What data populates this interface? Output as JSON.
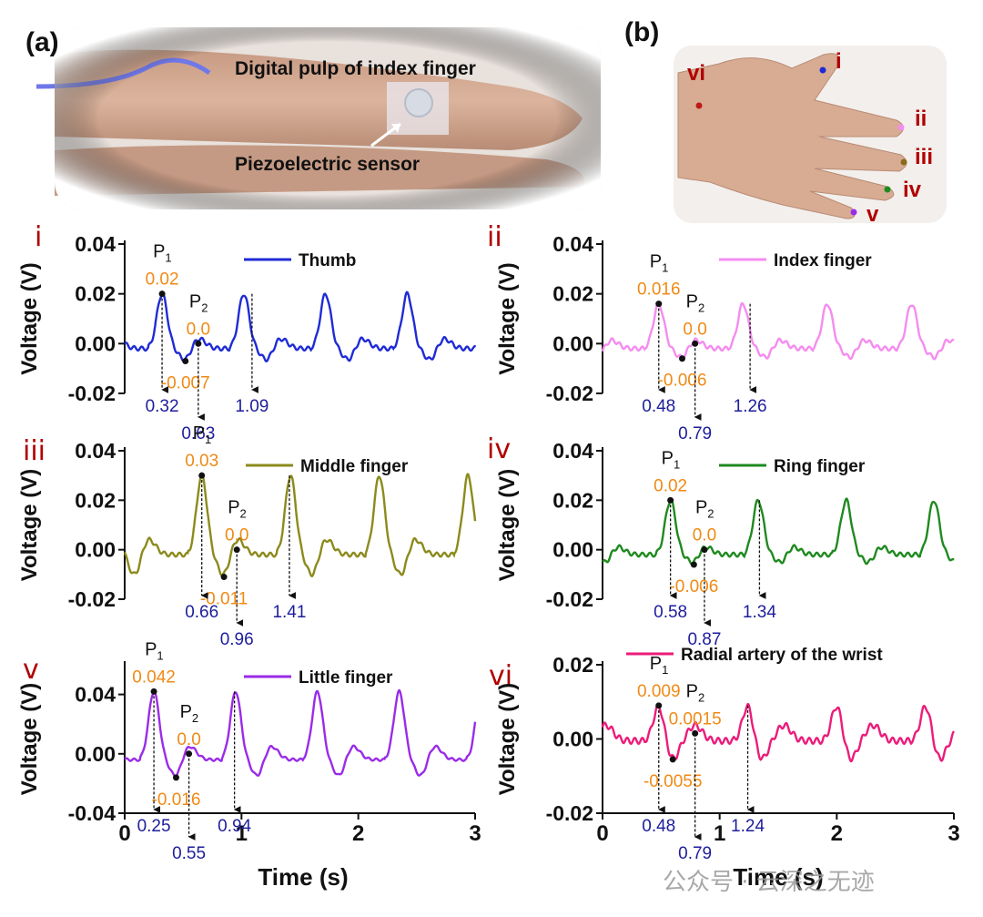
{
  "panel_a": {
    "label": "(a)",
    "caption_top": "Digital pulp of index finger",
    "caption_bottom": "Piezoelectric sensor"
  },
  "panel_b": {
    "label": "(b)",
    "sites": [
      "i",
      "ii",
      "iii",
      "iv",
      "v",
      "vi"
    ]
  },
  "axes_text": {
    "ylabel": "Voltage (V)",
    "xlabel": "Time (s)"
  },
  "watermark": "公众号 · 云深之无迹",
  "chart_data": [
    {
      "type": "line",
      "id": "i",
      "roman": "i",
      "color": "#1f2bd6",
      "legend": "Thumb",
      "xlim": [
        0,
        3
      ],
      "ylim": [
        -0.02,
        0.04
      ],
      "yticks": [
        "0.04",
        "0.02",
        "0.00",
        "-0.02"
      ],
      "xticks": [],
      "period": 0.7,
      "peak": 0.02,
      "trough": -0.007,
      "mid": 0.0,
      "p1": {
        "t": 0.32,
        "v": 0.02,
        "vlabel": "0.02"
      },
      "p2": {
        "t": 0.63,
        "v": 0.0,
        "vlabel": "0.0"
      },
      "tr": {
        "t": 0.52,
        "v": -0.007,
        "vlabel": "-0.007"
      },
      "markers": [
        {
          "t": 0.32,
          "label": "0.32"
        },
        {
          "t": 0.63,
          "label": "0.63"
        },
        {
          "t": 1.09,
          "label": "1.09"
        }
      ]
    },
    {
      "type": "line",
      "id": "ii",
      "roman": "ii",
      "color": "#f58cf0",
      "legend": "Index finger",
      "xlim": [
        0,
        3
      ],
      "ylim": [
        -0.02,
        0.04
      ],
      "yticks": [
        "0.04",
        "0.02",
        "0.00",
        "-0.02"
      ],
      "xticks": [],
      "period": 0.72,
      "peak": 0.016,
      "trough": -0.006,
      "mid": 0.0,
      "p1": {
        "t": 0.48,
        "v": 0.016,
        "vlabel": "0.016"
      },
      "p2": {
        "t": 0.79,
        "v": 0.0,
        "vlabel": "0.0"
      },
      "tr": {
        "t": 0.68,
        "v": -0.006,
        "vlabel": "-0.006"
      },
      "markers": [
        {
          "t": 0.48,
          "label": "0.48"
        },
        {
          "t": 0.79,
          "label": "0.79"
        },
        {
          "t": 1.26,
          "label": "1.26"
        }
      ]
    },
    {
      "type": "line",
      "id": "iii",
      "roman": "iii",
      "color": "#8c8a1c",
      "legend": "Middle finger",
      "xlim": [
        0,
        3
      ],
      "ylim": [
        -0.02,
        0.04
      ],
      "yticks": [
        "0.04",
        "0.02",
        "0.00",
        "-0.02"
      ],
      "xticks": [],
      "period": 0.76,
      "peak": 0.03,
      "trough": -0.011,
      "mid": 0.0,
      "p1": {
        "t": 0.66,
        "v": 0.03,
        "vlabel": "0.03"
      },
      "p2": {
        "t": 0.96,
        "v": 0.0,
        "vlabel": "0.0"
      },
      "tr": {
        "t": 0.85,
        "v": -0.011,
        "vlabel": "-0.011"
      },
      "markers": [
        {
          "t": 0.66,
          "label": "0.66"
        },
        {
          "t": 0.96,
          "label": "0.96"
        },
        {
          "t": 1.41,
          "label": "1.41"
        }
      ]
    },
    {
      "type": "line",
      "id": "iv",
      "roman": "iv",
      "color": "#1f8a1f",
      "legend": "Ring finger",
      "xlim": [
        0,
        3
      ],
      "ylim": [
        -0.02,
        0.04
      ],
      "yticks": [
        "0.04",
        "0.02",
        "0.00",
        "-0.02"
      ],
      "xticks": [],
      "period": 0.75,
      "peak": 0.02,
      "trough": -0.006,
      "mid": 0.0,
      "p1": {
        "t": 0.58,
        "v": 0.02,
        "vlabel": "0.02"
      },
      "p2": {
        "t": 0.87,
        "v": 0.0,
        "vlabel": "0.0"
      },
      "tr": {
        "t": 0.78,
        "v": -0.006,
        "vlabel": "-0.006"
      },
      "markers": [
        {
          "t": 0.58,
          "label": "0.58"
        },
        {
          "t": 0.87,
          "label": "0.87"
        },
        {
          "t": 1.34,
          "label": "1.34"
        }
      ]
    },
    {
      "type": "line",
      "id": "v",
      "roman": "v",
      "color": "#9a2be8",
      "legend": "Little finger",
      "xlim": [
        0,
        3
      ],
      "ylim": [
        -0.04,
        0.06
      ],
      "yticks": [
        "0.04",
        "0.00",
        "-0.04"
      ],
      "ytick_values": [
        0.04,
        0.0,
        -0.04
      ],
      "xticks": [
        "0",
        "1",
        "2",
        "3"
      ],
      "period": 0.7,
      "peak": 0.042,
      "trough": -0.016,
      "mid": 0.0,
      "p1": {
        "t": 0.25,
        "v": 0.042,
        "vlabel": "0.042"
      },
      "p2": {
        "t": 0.55,
        "v": 0.0,
        "vlabel": "0.0"
      },
      "tr": {
        "t": 0.44,
        "v": -0.016,
        "vlabel": "-0.016"
      },
      "markers": [
        {
          "t": 0.25,
          "label": "0.25"
        },
        {
          "t": 0.55,
          "label": "0.55"
        },
        {
          "t": 0.94,
          "label": "0.94"
        }
      ]
    },
    {
      "type": "line",
      "id": "vi",
      "roman": "vi",
      "color": "#ec1c7a",
      "legend": "Radial artery of the wrist",
      "xlim": [
        0,
        3
      ],
      "ylim": [
        -0.02,
        0.02
      ],
      "yticks": [
        "0.02",
        "0.00",
        "-0.02"
      ],
      "ytick_values": [
        0.02,
        0.0,
        -0.02
      ],
      "xticks": [
        "0",
        "1",
        "2",
        "3"
      ],
      "period": 0.76,
      "peak": 0.009,
      "trough": -0.0055,
      "mid": 0.0015,
      "p1": {
        "t": 0.48,
        "v": 0.009,
        "vlabel": "0.009"
      },
      "p2": {
        "t": 0.79,
        "v": 0.0015,
        "vlabel": "0.0015"
      },
      "tr": {
        "t": 0.6,
        "v": -0.0055,
        "vlabel": "-0.0055"
      },
      "markers": [
        {
          "t": 0.48,
          "label": "0.48"
        },
        {
          "t": 0.79,
          "label": "0.79"
        },
        {
          "t": 1.24,
          "label": "1.24"
        }
      ]
    }
  ]
}
